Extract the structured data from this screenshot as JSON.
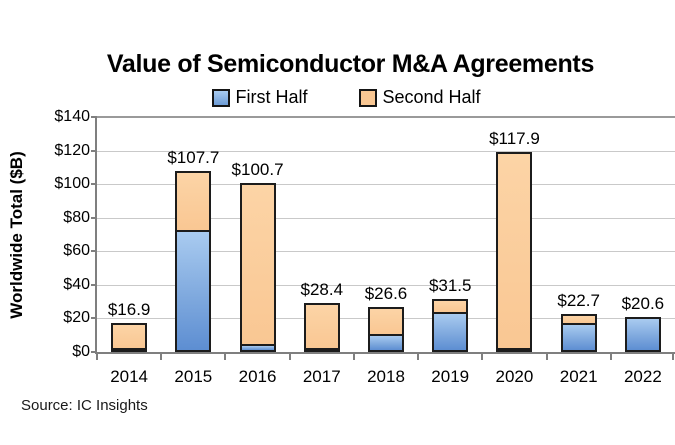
{
  "title": "Value of Semiconductor M&A Agreements",
  "source_note": "Source: IC Insights",
  "colors": {
    "first_half": "#6d9cd6",
    "second_half": "#f9c793",
    "bar_border": "#1c1c1c",
    "gridline": "#c9c9c9",
    "axis": "#7f7f7f",
    "text": "#000000"
  },
  "chart_data": {
    "type": "bar",
    "stacked": true,
    "title": "Value of Semiconductor M&A Agreements",
    "xlabel": "",
    "ylabel": "Worldwide Total ($B)",
    "ylim": [
      0,
      140
    ],
    "grid": true,
    "legend_position": "top-center",
    "y_tick_values": [
      0,
      20,
      40,
      60,
      80,
      100,
      120,
      140
    ],
    "y_tick_labels": [
      "$0",
      "$20",
      "$40",
      "$60",
      "$80",
      "$100",
      "$120",
      "$140"
    ],
    "categories": [
      "2014",
      "2015",
      "2016",
      "2017",
      "2018",
      "2019",
      "2020",
      "2021",
      "2022"
    ],
    "series": [
      {
        "name": "First Half",
        "values": [
          2.0,
          72.6,
          4.6,
          1.4,
          11.0,
          24.0,
          1.2,
          17.0,
          20.6
        ]
      },
      {
        "name": "Second Half",
        "values": [
          14.9,
          35.1,
          96.1,
          27.0,
          15.6,
          7.5,
          116.7,
          5.7,
          0.0
        ]
      }
    ],
    "totals": [
      16.9,
      107.7,
      100.7,
      28.4,
      26.6,
      31.5,
      117.9,
      22.7,
      20.6
    ],
    "total_labels": [
      "$16.9",
      "$107.7",
      "$100.7",
      "$28.4",
      "$26.6",
      "$31.5",
      "$117.9",
      "$22.7",
      "$20.6"
    ]
  }
}
